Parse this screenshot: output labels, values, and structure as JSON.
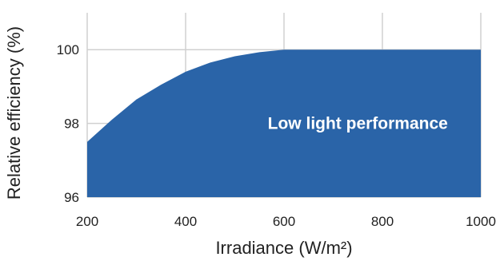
{
  "chart_data": {
    "type": "area",
    "title": "",
    "xlabel": "Irradiance (W/m²)",
    "ylabel": "Relative efficiency (%)",
    "xlim": [
      200,
      1000
    ],
    "ylim": [
      96,
      101
    ],
    "x_ticks": [
      "200",
      "400",
      "600",
      "800",
      "1000"
    ],
    "y_ticks": [
      "96",
      "98",
      "100"
    ],
    "grid": true,
    "series": [
      {
        "x": [
          200,
          250,
          300,
          350,
          400,
          450,
          500,
          550,
          600,
          700,
          800,
          900,
          1000
        ],
        "y": [
          97.5,
          98.1,
          98.65,
          99.05,
          99.4,
          99.65,
          99.82,
          99.93,
          100.0,
          100.0,
          100.0,
          100.0,
          100.0
        ],
        "color": "#2a64a8"
      }
    ],
    "annotation": "Low light performance"
  }
}
